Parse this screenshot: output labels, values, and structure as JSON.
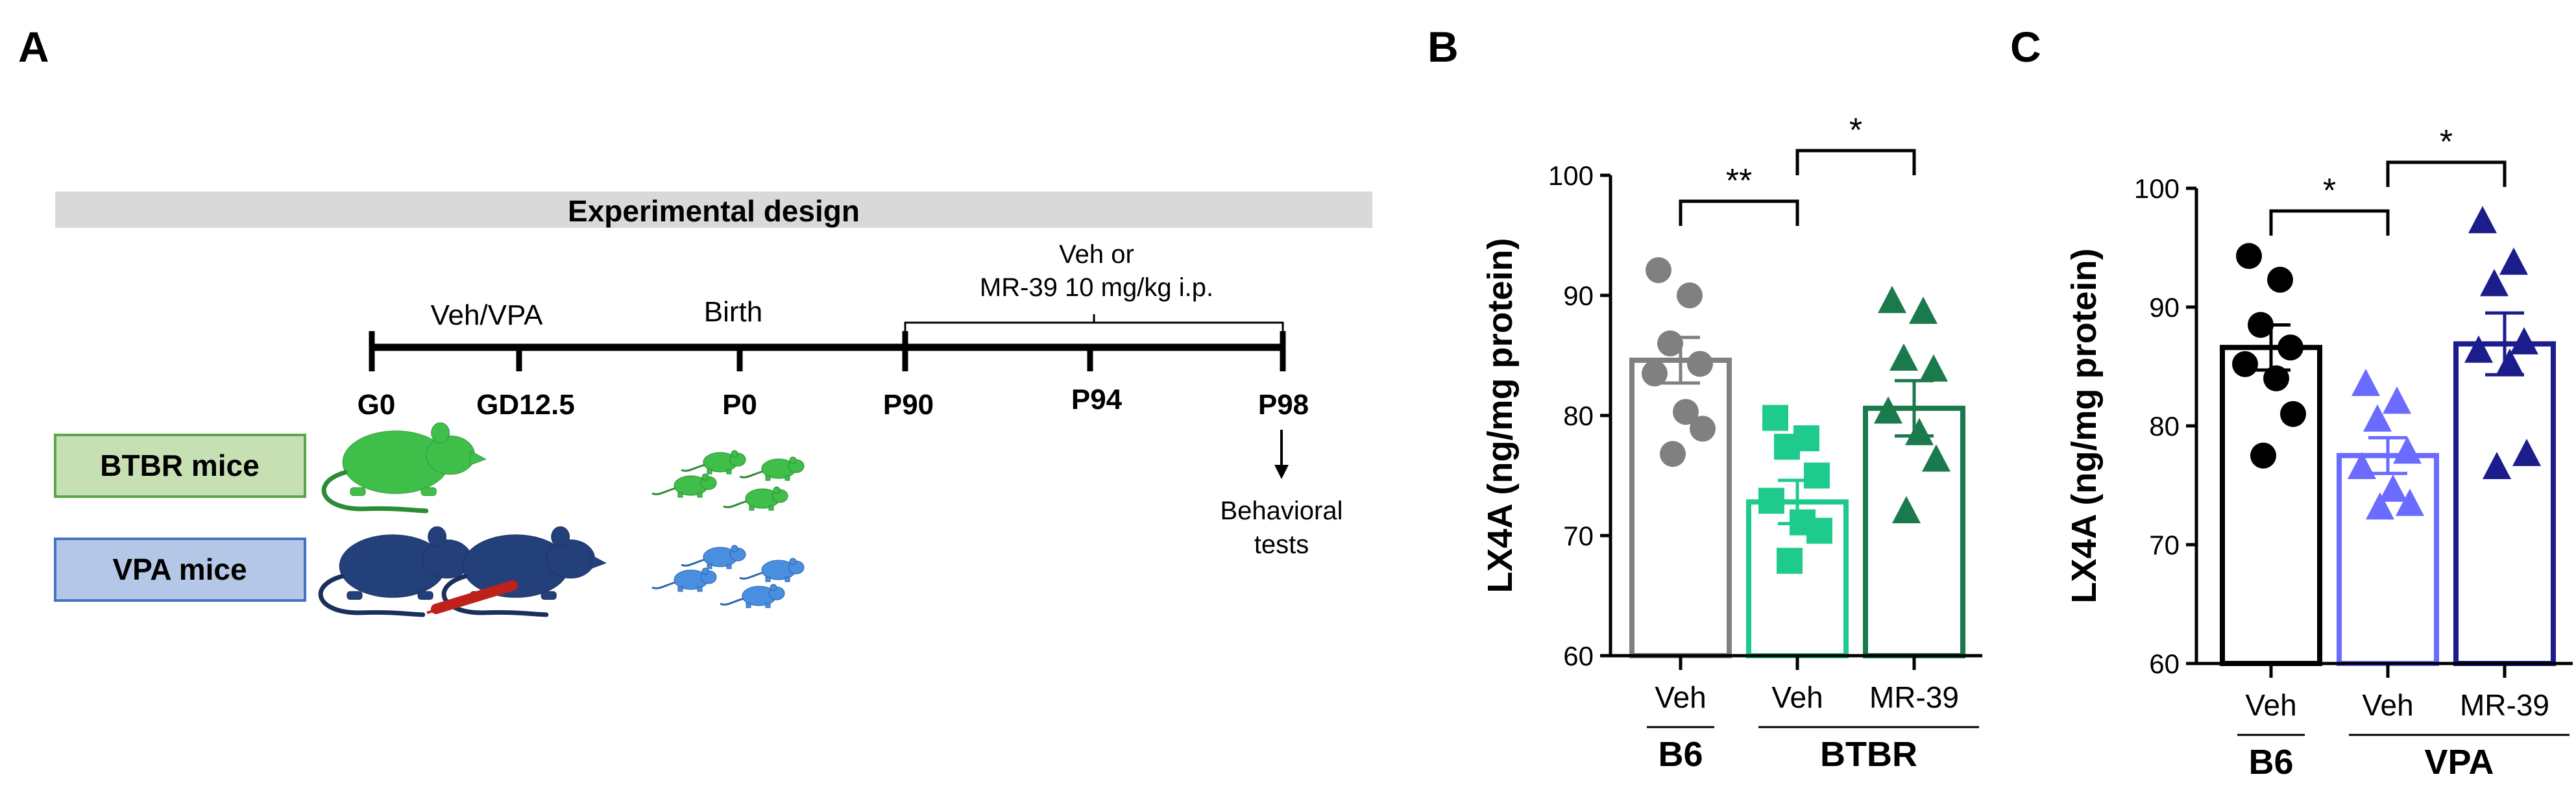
{
  "panels": {
    "a": "A",
    "b": "B",
    "c": "C"
  },
  "design": {
    "title": "Experimental design",
    "treatment_label": "Veh/VPA",
    "birth_label": "Birth",
    "treatment2_line1": "Veh or",
    "treatment2_line2": "MR-39 10 mg/kg i.p.",
    "timepoints": [
      "G0",
      "GD12.5",
      "P0",
      "P90",
      "P94",
      "P98"
    ],
    "outcome_line1": "Behavioral",
    "outcome_line2": "tests",
    "groups": [
      "BTBR mice",
      "VPA mice"
    ],
    "colors": {
      "bar": "#d9d9d9",
      "btbr_box": "#c6e0b4",
      "btbr_border": "#5aa84b",
      "vpa_box": "#b4c7e7",
      "vpa_border": "#4472c4",
      "mouse_green": "#3fbf4a",
      "mouse_navy": "#23407a",
      "pup_blue": "#4a8ee0",
      "syringe": "#c0201a"
    }
  },
  "chart_data": [
    {
      "type": "bar",
      "ylabel": "LX4A (ng/mg protein)",
      "ylim": [
        60,
        100
      ],
      "yticks": [
        60,
        70,
        80,
        90,
        100
      ],
      "categories": [
        "Veh",
        "Veh",
        "MR-39"
      ],
      "group_labels": [
        "B6",
        "BTBR"
      ],
      "values": [
        84.6,
        72.8,
        80.6
      ],
      "sem": [
        1.9,
        1.8,
        2.3
      ],
      "colors": [
        "#808080",
        "#1fcb8c",
        "#1b7a4c"
      ],
      "markers": [
        "circle",
        "square",
        "triangle"
      ],
      "points": [
        [
          92.1,
          90.0,
          86.0,
          84.3,
          83.5,
          80.3,
          78.9,
          76.8
        ],
        [
          79.8,
          78.1,
          77.4,
          75.0,
          72.9,
          71.1,
          70.4,
          67.9
        ],
        [
          89.5,
          88.6,
          84.7,
          83.8,
          80.3,
          78.5,
          76.3,
          72.0
        ]
      ],
      "significance": [
        {
          "from": 0,
          "to": 1,
          "label": "**"
        },
        {
          "from": 1,
          "to": 2,
          "label": "*"
        }
      ]
    },
    {
      "type": "bar",
      "ylabel": "LX4A (ng/mg protein)",
      "ylim": [
        60,
        100
      ],
      "yticks": [
        60,
        70,
        80,
        90,
        100
      ],
      "categories": [
        "Veh",
        "Veh",
        "MR-39"
      ],
      "group_labels": [
        "B6",
        "VPA"
      ],
      "values": [
        86.6,
        77.5,
        86.9
      ],
      "sem": [
        1.9,
        1.5,
        2.6
      ],
      "colors": [
        "#000000",
        "#6b6bff",
        "#1c1c8c"
      ],
      "markers": [
        "circle",
        "triangle",
        "triangle"
      ],
      "points": [
        [
          94.3,
          92.3,
          88.5,
          86.6,
          85.2,
          84.0,
          81.0,
          77.5
        ],
        [
          83.5,
          82.0,
          80.5,
          77.8,
          76.5,
          74.6,
          73.4,
          73.1
        ],
        [
          97.2,
          93.7,
          91.9,
          87.0,
          86.3,
          85.2,
          77.6,
          76.5
        ]
      ],
      "significance": [
        {
          "from": 0,
          "to": 1,
          "label": "*"
        },
        {
          "from": 1,
          "to": 2,
          "label": "*"
        }
      ]
    }
  ]
}
